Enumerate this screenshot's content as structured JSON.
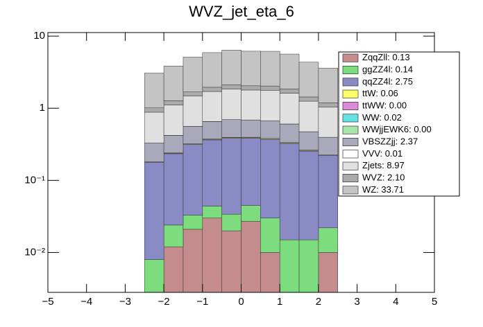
{
  "chart_data": {
    "type": "stacked-histogram",
    "title": "WVZ_jet_eta_6",
    "bins": [
      -2.5,
      -2,
      -1.5,
      -1,
      -0.5,
      0,
      0.5,
      1,
      1.5,
      2,
      2.5
    ],
    "xlim": [
      -5,
      5
    ],
    "xticks": [
      {
        "value": -5,
        "label": "−5"
      },
      {
        "value": -4,
        "label": "−4"
      },
      {
        "value": -3,
        "label": "−3"
      },
      {
        "value": -2,
        "label": "−2"
      },
      {
        "value": -1,
        "label": "−1"
      },
      0,
      1,
      2,
      3,
      4,
      5
    ],
    "ylim": [
      0.0028,
      11.2
    ],
    "log_y": true,
    "yticks": [
      {
        "value": 0.01,
        "label": "10⁻²"
      },
      {
        "value": 0.1,
        "label": "10⁻¹"
      },
      1,
      10
    ],
    "legend": "upper-right",
    "series": [
      {
        "name": "ZqqZll: 0.13",
        "color": "#c48c8c",
        "values": [
          0,
          0.012,
          0.021,
          0.03,
          0.02,
          0.027,
          0.01,
          0,
          0,
          0.01
        ]
      },
      {
        "name": "ggZZ4l: 0.14",
        "color": "#7ddc7d",
        "values": [
          0.008,
          0.012,
          0.012,
          0.014,
          0.014,
          0.018,
          0.02,
          0.015,
          0.015,
          0.012
        ]
      },
      {
        "name": "qqZZ4l: 2.75",
        "color": "#8a8ac4",
        "values": [
          0.17,
          0.21,
          0.28,
          0.32,
          0.35,
          0.34,
          0.34,
          0.31,
          0.24,
          0.2
        ]
      },
      {
        "name": "ttW: 0.06",
        "color": "#ffff66",
        "values": [
          0.003,
          0.004,
          0.006,
          0.007,
          0.008,
          0.008,
          0.008,
          0.007,
          0.005,
          0.004
        ]
      },
      {
        "name": "ttWW: 0.00",
        "color": "#d98cd9",
        "values": [
          0,
          0,
          0,
          0,
          0,
          0,
          0,
          0,
          0,
          0
        ]
      },
      {
        "name": "WW: 0.02",
        "color": "#66e0e0",
        "values": [
          0,
          0.002,
          0.002,
          0.003,
          0.003,
          0.003,
          0.003,
          0.002,
          0.002,
          0
        ]
      },
      {
        "name": "WWjjEWK6: 0.00",
        "color": "#a8e6a8",
        "values": [
          0,
          0,
          0,
          0,
          0,
          0,
          0,
          0,
          0,
          0
        ]
      },
      {
        "name": "VBSZZjj: 2.37",
        "color": "#a9a9bb",
        "values": [
          0.15,
          0.18,
          0.24,
          0.28,
          0.3,
          0.29,
          0.29,
          0.27,
          0.21,
          0.17
        ]
      },
      {
        "name": "VVV: 0.01",
        "color": "#ffffff",
        "values": [
          0,
          0.001,
          0.001,
          0.002,
          0.001,
          0.002,
          0.001,
          0.001,
          0.001,
          0
        ]
      },
      {
        "name": "Zjets: 8.97",
        "color": "#e0e0e0",
        "values": [
          0.55,
          0.69,
          0.91,
          1.05,
          1.14,
          1.1,
          1.1,
          1.01,
          0.78,
          0.64
        ]
      },
      {
        "name": "WVZ: 2.10",
        "color": "#aaaaaa",
        "values": [
          0.13,
          0.16,
          0.21,
          0.25,
          0.27,
          0.26,
          0.26,
          0.24,
          0.18,
          0.15
        ]
      },
      {
        "name": "WZ: 33.71",
        "color": "#c4c4c4",
        "values": [
          2.06,
          2.58,
          3.44,
          3.95,
          4.3,
          4.13,
          4.13,
          3.78,
          2.92,
          2.41
        ]
      }
    ]
  }
}
